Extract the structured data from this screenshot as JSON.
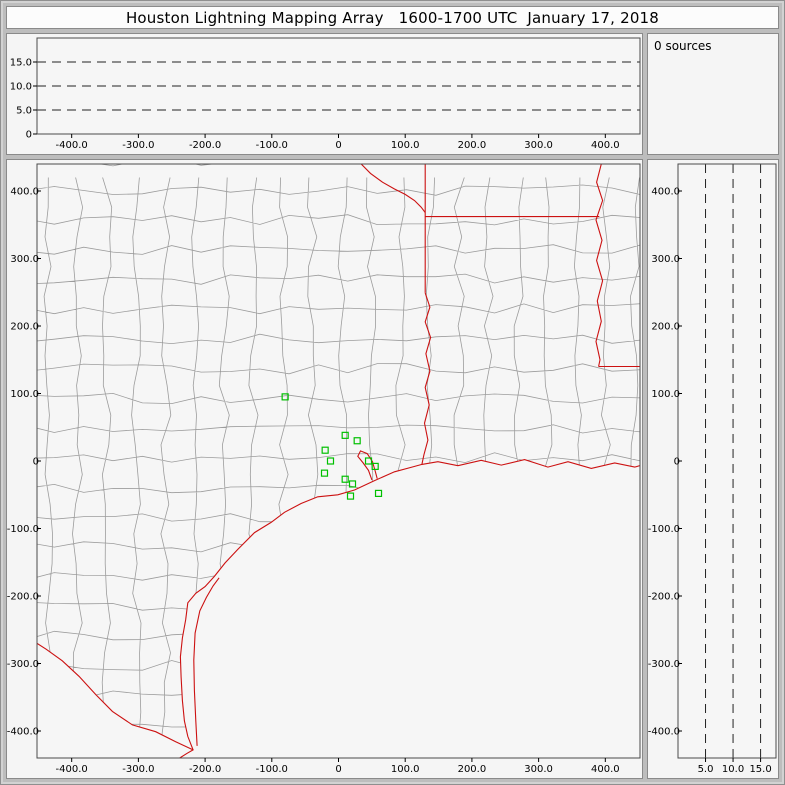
{
  "title": "Houston Lightning Mapping Array   1600-1700 UTC  January 17, 2018",
  "sources_panel": {
    "label": "0 sources"
  },
  "colors": {
    "frame": "#bdbdbd",
    "plot_bg": "#f6f6f6",
    "plot_border": "#4a4a4a",
    "dash": "#222222",
    "county": "#9c9c9c",
    "state": "#cc1111",
    "station": "#00c000",
    "text": "#000000"
  },
  "chart_data": [
    {
      "name": "altitude-vs-east-west",
      "type": "scatter",
      "xlim": [
        -452,
        452
      ],
      "ylim": [
        0,
        20
      ],
      "x_tick_values": [
        -400,
        -300,
        -200,
        -100,
        0,
        100,
        200,
        300,
        400
      ],
      "x_tick_labels": [
        "-400.0",
        "-300.0",
        "-200.0",
        "-100.0",
        "0",
        "100.0",
        "200.0",
        "300.0",
        "400.0"
      ],
      "y_tick_values": [
        15,
        10,
        5,
        0
      ],
      "y_tick_labels": [
        "15.0",
        "10.0",
        "5.0",
        "0"
      ],
      "dashed_altitudes_km": [
        5,
        10,
        15
      ],
      "points": []
    },
    {
      "name": "plan-view-map",
      "type": "scatter",
      "xlim": [
        -452,
        452
      ],
      "ylim": [
        -440,
        440
      ],
      "x_tick_values": [
        -400,
        -300,
        -200,
        -100,
        0,
        100,
        200,
        300,
        400
      ],
      "x_tick_labels": [
        "-400.0",
        "-300.0",
        "-200.0",
        "-100.0",
        "0",
        "100.0",
        "200.0",
        "300.0",
        "400.0"
      ],
      "y_tick_values": [
        400,
        300,
        200,
        100,
        0,
        -100,
        -200,
        -300,
        -400
      ],
      "y_tick_labels": [
        "400.0",
        "300.0",
        "200.0",
        "100.0",
        "0",
        "-100.0",
        "-200.0",
        "-300.0",
        "-400.0"
      ],
      "points": [],
      "stations_km": [
        [
          -80,
          95
        ],
        [
          10,
          38
        ],
        [
          28,
          30
        ],
        [
          -20,
          16
        ],
        [
          -12,
          0
        ],
        [
          -21,
          -18
        ],
        [
          10,
          -27
        ],
        [
          21,
          -34
        ],
        [
          45,
          0
        ],
        [
          55,
          -8
        ],
        [
          18,
          -52
        ],
        [
          60,
          -48
        ]
      ],
      "counties": {
        "generated": true,
        "cell_km": 44,
        "seed": 97
      },
      "land_outline_km": [
        [
          -452,
          440
        ],
        [
          458,
          440
        ],
        [
          458,
          -5
        ],
        [
          444,
          -9
        ],
        [
          414,
          -3
        ],
        [
          379,
          -11
        ],
        [
          344,
          -1
        ],
        [
          314,
          -9
        ],
        [
          279,
          2
        ],
        [
          244,
          -6
        ],
        [
          214,
          1
        ],
        [
          179,
          -7
        ],
        [
          149,
          -1
        ],
        [
          125,
          -5
        ],
        [
          84,
          -16
        ],
        [
          54,
          -29
        ],
        [
          24,
          -43
        ],
        [
          -1,
          -50
        ],
        [
          -31,
          -53
        ],
        [
          -56,
          -63
        ],
        [
          -81,
          -76
        ],
        [
          -101,
          -91
        ],
        [
          -126,
          -106
        ],
        [
          -151,
          -131
        ],
        [
          -170,
          -151
        ],
        [
          -186,
          -171
        ],
        [
          -200,
          -186
        ],
        [
          -214,
          -196
        ],
        [
          -226,
          -210
        ],
        [
          -229,
          -235
        ],
        [
          -234,
          -262
        ],
        [
          -237,
          -290
        ],
        [
          -236,
          -320
        ],
        [
          -234,
          -355
        ],
        [
          -231,
          -385
        ],
        [
          -226,
          -408
        ],
        [
          -218,
          -428
        ],
        [
          -244,
          -416
        ],
        [
          -274,
          -401
        ],
        [
          -309,
          -391
        ],
        [
          -339,
          -371
        ],
        [
          -364,
          -346
        ],
        [
          -389,
          -319
        ],
        [
          -414,
          -296
        ],
        [
          -438,
          -279
        ],
        [
          -452,
          -270
        ]
      ],
      "boundaries_km": {
        "gulf-coast": [
          [
            -238,
            -440
          ],
          [
            -227,
            -433
          ],
          [
            -218,
            -428
          ],
          [
            -226,
            -408
          ],
          [
            -231,
            -385
          ],
          [
            -234,
            -355
          ],
          [
            -236,
            -320
          ],
          [
            -237,
            -290
          ],
          [
            -234,
            -262
          ],
          [
            -229,
            -235
          ],
          [
            -226,
            -210
          ],
          [
            -214,
            -196
          ],
          [
            -200,
            -186
          ],
          [
            -186,
            -171
          ],
          [
            -170,
            -151
          ],
          [
            -151,
            -131
          ],
          [
            -126,
            -106
          ],
          [
            -101,
            -91
          ],
          [
            -81,
            -76
          ],
          [
            -56,
            -63
          ],
          [
            -31,
            -53
          ],
          [
            -1,
            -50
          ],
          [
            24,
            -43
          ],
          [
            54,
            -29
          ],
          [
            84,
            -16
          ],
          [
            110,
            -9
          ],
          [
            125,
            -5
          ],
          [
            149,
            -1
          ],
          [
            179,
            -7
          ],
          [
            214,
            1
          ],
          [
            244,
            -6
          ],
          [
            279,
            2
          ],
          [
            314,
            -9
          ],
          [
            344,
            -1
          ],
          [
            379,
            -11
          ],
          [
            414,
            -3
          ],
          [
            444,
            -9
          ],
          [
            458,
            -5
          ]
        ],
        "padre-island": [
          [
            -212,
            -422
          ],
          [
            -214,
            -385
          ],
          [
            -216,
            -340
          ],
          [
            -217,
            -295
          ],
          [
            -215,
            -255
          ],
          [
            -208,
            -222
          ],
          [
            -198,
            -202
          ],
          [
            -188,
            -185
          ],
          [
            -179,
            -173
          ]
        ],
        "rio-grande": [
          [
            -452,
            -270
          ],
          [
            -438,
            -279
          ],
          [
            -414,
            -296
          ],
          [
            -389,
            -319
          ],
          [
            -364,
            -346
          ],
          [
            -339,
            -371
          ],
          [
            -309,
            -391
          ],
          [
            -274,
            -401
          ],
          [
            -244,
            -416
          ],
          [
            -218,
            -428
          ]
        ],
        "galveston-bay": [
          [
            50,
            -28
          ],
          [
            45,
            -14
          ],
          [
            37,
            -3
          ],
          [
            29,
            7
          ],
          [
            33,
            15
          ],
          [
            43,
            11
          ],
          [
            51,
            -1
          ],
          [
            55,
            -15
          ],
          [
            58,
            -26
          ]
        ],
        "state-line-vertical": [
          [
            130,
            440
          ],
          [
            130,
            249
          ]
        ],
        "red-river": [
          [
            34,
            440
          ],
          [
            48,
            426
          ],
          [
            66,
            413
          ],
          [
            84,
            403
          ],
          [
            100,
            395
          ],
          [
            114,
            386
          ],
          [
            124,
            376
          ],
          [
            130,
            368
          ]
        ],
        "ar-la-line": [
          [
            130,
            362
          ],
          [
            391,
            362
          ]
        ],
        "sabine-river": [
          [
            130,
            249
          ],
          [
            137,
            228
          ],
          [
            130,
            206
          ],
          [
            138,
            183
          ],
          [
            131,
            159
          ],
          [
            137,
            133
          ],
          [
            130,
            109
          ],
          [
            136,
            83
          ],
          [
            129,
            56
          ],
          [
            134,
            31
          ],
          [
            128,
            9
          ],
          [
            125,
            -5
          ]
        ],
        "mississippi-river": [
          [
            394,
            440
          ],
          [
            387,
            413
          ],
          [
            396,
            386
          ],
          [
            386,
            357
          ],
          [
            395,
            327
          ],
          [
            387,
            297
          ],
          [
            396,
            267
          ],
          [
            388,
            237
          ],
          [
            394,
            207
          ],
          [
            386,
            177
          ],
          [
            392,
            150
          ],
          [
            390,
            140
          ]
        ],
        "la-ms-line": [
          [
            390,
            140
          ],
          [
            458,
            140
          ]
        ]
      }
    },
    {
      "name": "altitude-vs-north-south",
      "type": "scatter",
      "xlim": [
        0,
        17.8
      ],
      "ylim": [
        -440,
        440
      ],
      "x_tick_values": [
        5,
        10,
        15
      ],
      "x_tick_labels": [
        "5.0",
        "10.0",
        "15.0"
      ],
      "y_tick_values": [
        400,
        300,
        200,
        100,
        0,
        -100,
        -200,
        -300,
        -400
      ],
      "y_tick_labels": [
        "400.0",
        "300.0",
        "200.0",
        "100.0",
        "0",
        "-100.0",
        "-200.0",
        "-300.0",
        "-400.0"
      ],
      "dashed_altitudes_km": [
        5,
        10,
        15
      ],
      "points": []
    }
  ]
}
